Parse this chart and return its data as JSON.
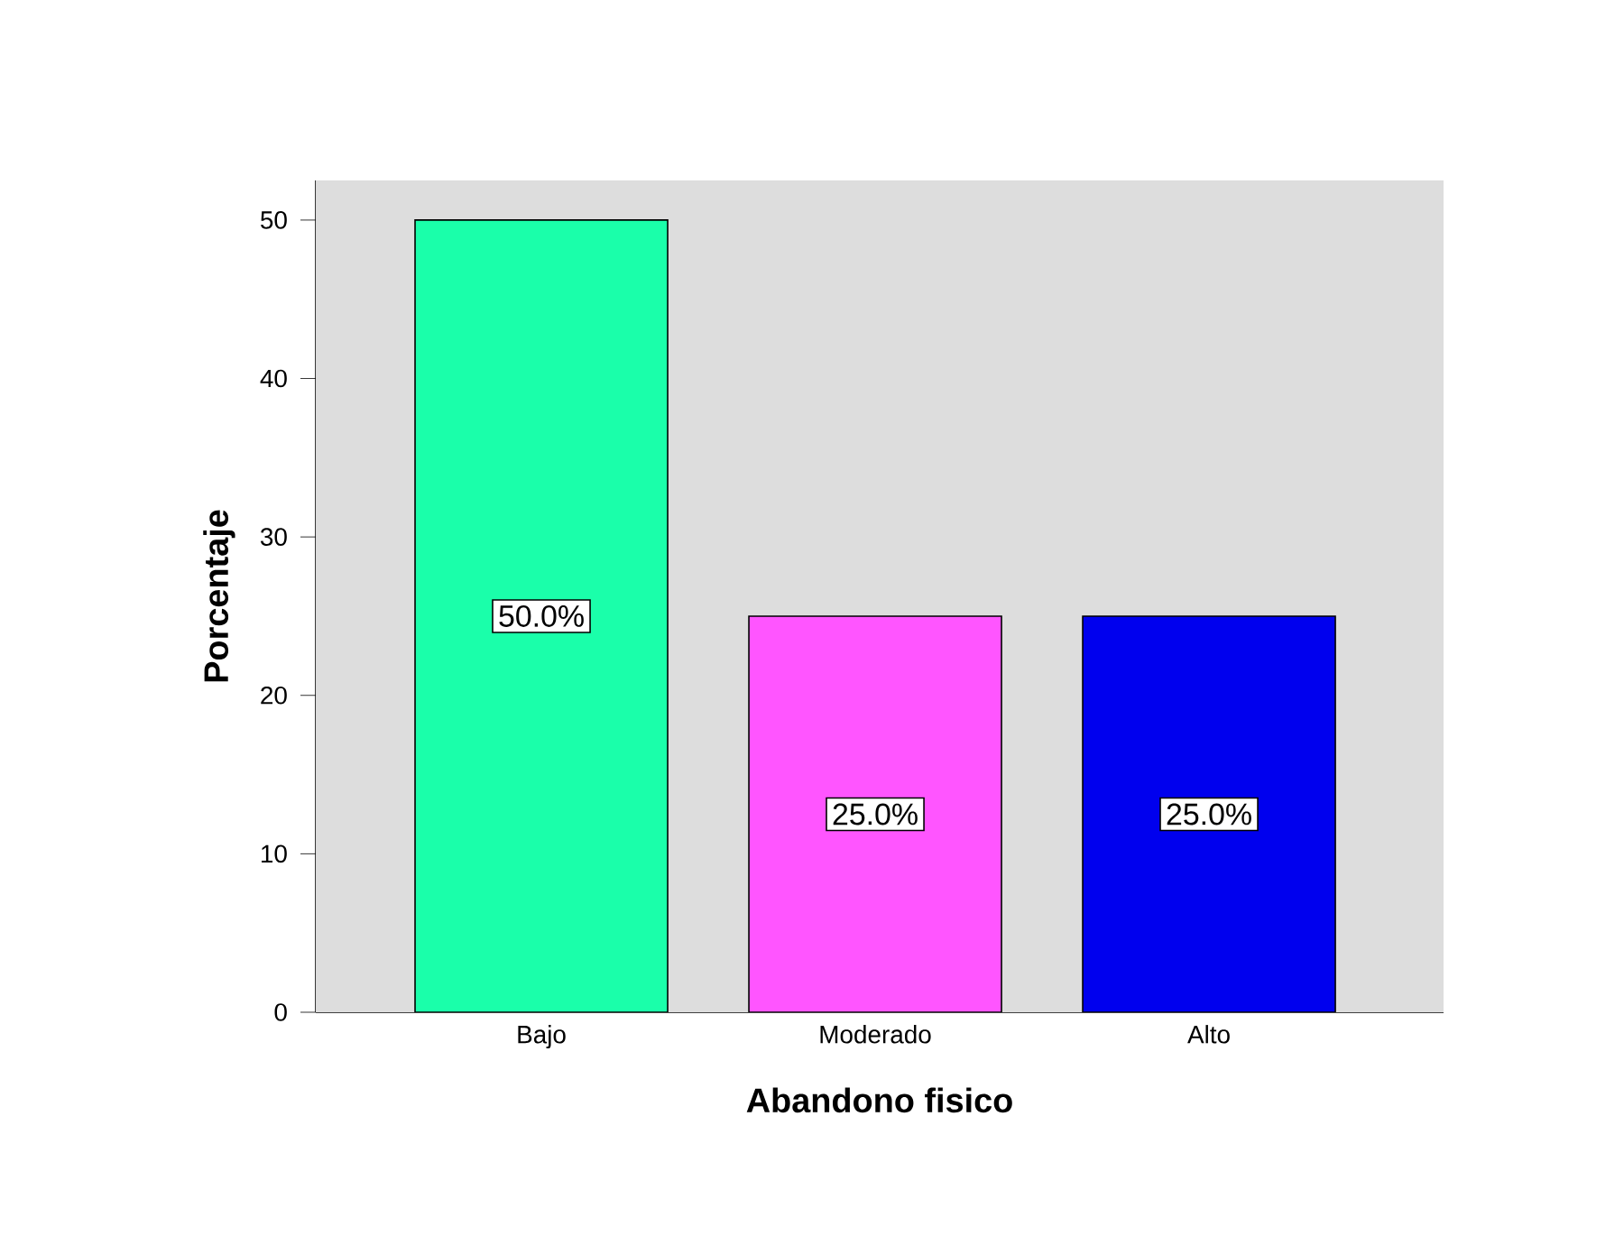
{
  "chart_data": {
    "type": "bar",
    "xlabel": "Abandono fisico",
    "ylabel": "Porcentaje",
    "categories": [
      "Bajo",
      "Moderado",
      "Alto"
    ],
    "values": [
      50,
      25,
      25
    ],
    "colors": [
      "#1affaa",
      "#ff55ff",
      "#0000ee"
    ],
    "value_labels": [
      "50.0%",
      "25.0%",
      "25.0%"
    ],
    "ylim": [
      0,
      52.5
    ],
    "yticks": [
      0,
      10,
      20,
      30,
      40,
      50
    ],
    "grid": false
  }
}
